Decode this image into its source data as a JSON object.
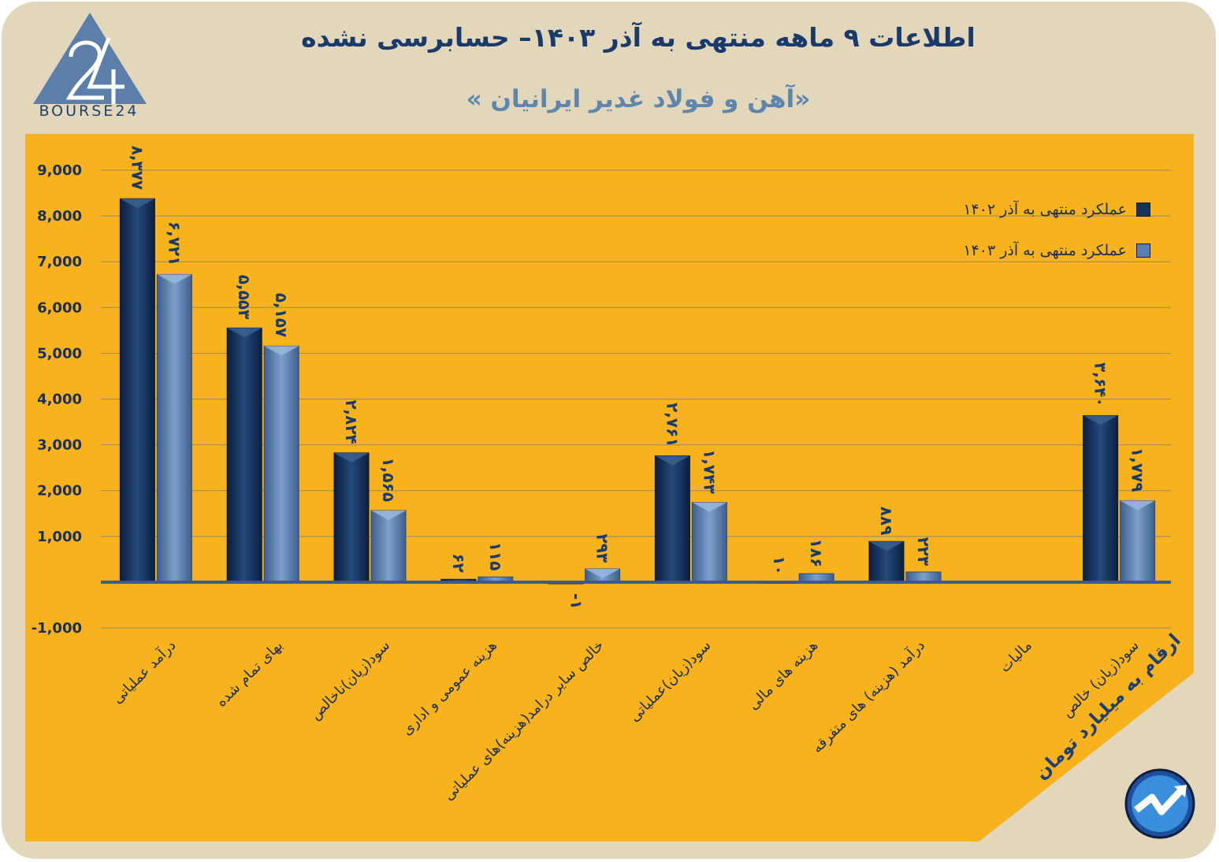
{
  "header": {
    "title": "اطلاعات ۹ ماهه منتهی به آذر ۱۴۰۳– حسابرسی نشده",
    "subtitle": "«آهن و فولاد غدیر ایرانیان »",
    "logo_text": "BOURSE24",
    "unit_note": "ارقام به میلیارد تومان"
  },
  "colors": {
    "frame": "#e3d7bb",
    "panel": "#f7b21d",
    "series_1402": "#16335e",
    "series_1403": "#5a7eae",
    "axis": "#3b5b85"
  },
  "chart_data": {
    "type": "bar",
    "title": "اطلاعات ۹ ماهه منتهی به آذر ۱۴۰۳– حسابرسی نشده",
    "subtitle": "«آهن و فولاد غدیر ایرانیان »",
    "xlabel": "",
    "ylabel": "",
    "ylim": [
      -1000,
      9000
    ],
    "yticks": [
      -1000,
      0,
      1000,
      2000,
      3000,
      4000,
      5000,
      6000,
      7000,
      8000,
      9000
    ],
    "ytick_labels": [
      "-1,000",
      "",
      "1,000",
      "2,000",
      "3,000",
      "4,000",
      "5,000",
      "6,000",
      "7,000",
      "8,000",
      "9,000"
    ],
    "grid": true,
    "legend_position": "top-right",
    "categories": [
      "درآمد عملیاتی",
      "بهای تمام شده",
      "سود(زیان)ناخالص",
      "هزینه عمومی و اداری",
      "خالص سایر درامد(هزینه)های عملیاتی",
      "سود(زیان)عملیاتی",
      "هزینه های مالی",
      "درآمد (هزینه) های متفرقه",
      "مالیات",
      "سود(زیان) خالص"
    ],
    "series": [
      {
        "name": "عملکرد منتهی به آذر ۱۴۰۲",
        "values": [
          8377,
          5553,
          2824,
          62,
          -1,
          2761,
          10,
          889,
          0,
          3640
        ],
        "labels": [
          "۸,۳۷۷",
          "۵,۵۵۳",
          "۲,۸۲۴",
          "۶۲",
          "-۱",
          "۲,۷۶۱",
          "۱۰",
          "۸۸۹",
          "",
          "۳,۶۴۰"
        ]
      },
      {
        "name": "عملکرد منتهی به آذر ۱۴۰۳",
        "values": [
          6721,
          5157,
          1565,
          115,
          293,
          1743,
          186,
          223,
          0,
          1779
        ],
        "labels": [
          "۶,۷۲۱",
          "۵,۱۵۷",
          "۱,۵۶۵",
          "۱۱۵",
          "۲۹۳",
          "۱,۷۴۳",
          "۱۸۶",
          "۲۲۳",
          "",
          "۱,۷۷۹"
        ]
      }
    ]
  }
}
